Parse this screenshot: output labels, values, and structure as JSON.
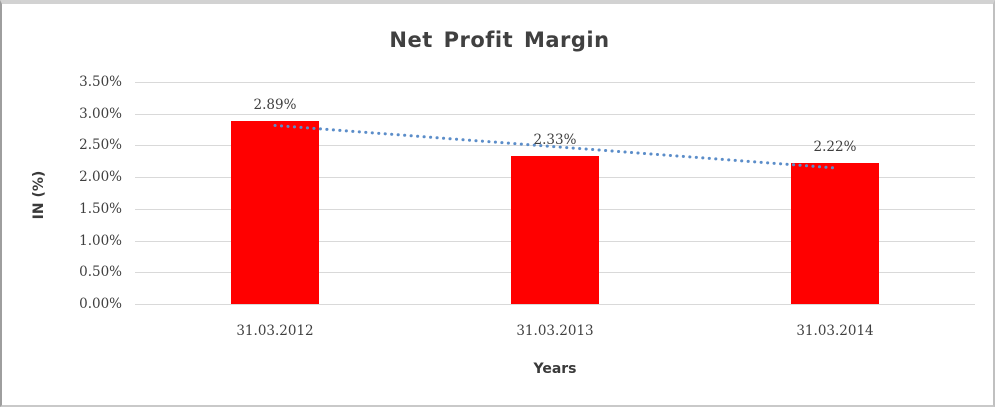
{
  "frame": {
    "background": "#ffffff",
    "border_color": "#b5b5b5"
  },
  "chart_data": {
    "type": "bar",
    "title": "Net Profit Margin",
    "xlabel": "Years",
    "ylabel": "IN (%)",
    "categories": [
      "31.03.2012",
      "31.03.2013",
      "31.03.2014"
    ],
    "values": [
      2.89,
      2.33,
      2.22
    ],
    "value_labels": [
      "2.89%",
      "2.33%",
      "2.22%"
    ],
    "yticks": [
      {
        "label": "3.50%",
        "value": 3.5
      },
      {
        "label": "3.00%",
        "value": 3.0
      },
      {
        "label": "2.50%",
        "value": 2.5
      },
      {
        "label": "2.00%",
        "value": 2.0
      },
      {
        "label": "1.50%",
        "value": 1.5
      },
      {
        "label": "1.00%",
        "value": 1.0
      },
      {
        "label": "0.50%",
        "value": 0.5
      },
      {
        "label": "0.00%",
        "value": 0.0
      }
    ],
    "ylim": [
      0,
      3.5
    ],
    "grid": true,
    "legend": "none",
    "bar_color": "#ff0000",
    "gridline_color": "#d9d9d9",
    "text_color": "#3f3f3f",
    "trendline": {
      "type": "linear",
      "style": "dotted",
      "color": "#5b8dc9",
      "fitted_endpoint_values": [
        2.815,
        2.145
      ]
    }
  }
}
